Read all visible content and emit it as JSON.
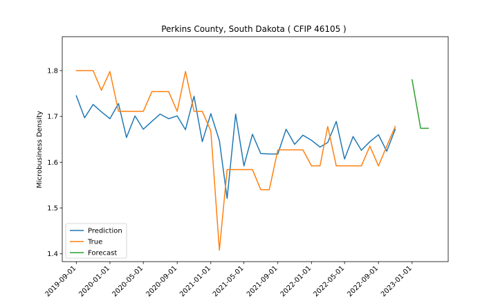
{
  "chart_data": {
    "type": "line",
    "title": "Perkins County, South Dakota ( CFIP 46105 )",
    "xlabel": "",
    "ylabel": "Microbusiness Density",
    "xlim": [
      "2019-07-12",
      "2023-05-12"
    ],
    "ylim": [
      1.383,
      1.874
    ],
    "x_ticks": [
      "2019-09-01",
      "2020-01-01",
      "2020-05-01",
      "2020-09-01",
      "2021-01-01",
      "2021-05-01",
      "2021-09-01",
      "2022-01-01",
      "2022-05-01",
      "2022-09-01",
      "2023-01-01"
    ],
    "y_ticks": [
      1.4,
      1.5,
      1.6,
      1.7,
      1.8
    ],
    "grid": false,
    "legend_position": "lower-left",
    "series": [
      {
        "name": "Prediction",
        "color": "#1f77b4",
        "x": [
          "2019-09-01",
          "2019-10-01",
          "2019-11-01",
          "2019-12-01",
          "2020-01-01",
          "2020-02-01",
          "2020-03-01",
          "2020-04-01",
          "2020-05-01",
          "2020-06-01",
          "2020-07-01",
          "2020-08-01",
          "2020-09-01",
          "2020-10-01",
          "2020-11-01",
          "2020-12-01",
          "2021-01-01",
          "2021-02-01",
          "2021-03-01",
          "2021-04-01",
          "2021-05-01",
          "2021-06-01",
          "2021-07-01",
          "2021-08-01",
          "2021-09-01",
          "2021-10-01",
          "2021-11-01",
          "2021-12-01",
          "2022-01-01",
          "2022-02-01",
          "2022-03-01",
          "2022-04-01",
          "2022-05-01",
          "2022-06-01",
          "2022-07-01",
          "2022-08-01",
          "2022-09-01",
          "2022-10-01",
          "2022-11-01"
        ],
        "y": [
          1.745,
          1.697,
          1.726,
          1.71,
          1.695,
          1.728,
          1.654,
          1.701,
          1.672,
          1.689,
          1.705,
          1.695,
          1.701,
          1.671,
          1.744,
          1.645,
          1.706,
          1.647,
          1.521,
          1.705,
          1.592,
          1.661,
          1.619,
          1.618,
          1.618,
          1.672,
          1.639,
          1.659,
          1.648,
          1.633,
          1.643,
          1.689,
          1.607,
          1.656,
          1.626,
          1.645,
          1.66,
          1.624,
          1.672
        ]
      },
      {
        "name": "True",
        "color": "#ff7f0e",
        "x": [
          "2019-09-01",
          "2019-10-01",
          "2019-11-01",
          "2019-12-01",
          "2020-01-01",
          "2020-02-01",
          "2020-03-01",
          "2020-04-01",
          "2020-05-01",
          "2020-06-01",
          "2020-07-01",
          "2020-08-01",
          "2020-09-01",
          "2020-10-01",
          "2020-11-01",
          "2020-12-01",
          "2021-01-01",
          "2021-02-01",
          "2021-03-01",
          "2021-04-01",
          "2021-05-01",
          "2021-06-01",
          "2021-07-01",
          "2021-08-01",
          "2021-09-01",
          "2021-10-01",
          "2021-11-01",
          "2021-12-01",
          "2022-01-01",
          "2022-02-01",
          "2022-03-01",
          "2022-04-01",
          "2022-05-01",
          "2022-06-01",
          "2022-07-01",
          "2022-08-01",
          "2022-09-01",
          "2022-10-01",
          "2022-11-01"
        ],
        "y": [
          1.8,
          1.8,
          1.8,
          1.757,
          1.798,
          1.711,
          1.711,
          1.711,
          1.711,
          1.754,
          1.754,
          1.754,
          1.711,
          1.798,
          1.711,
          1.711,
          1.668,
          1.408,
          1.584,
          1.584,
          1.584,
          1.584,
          1.54,
          1.54,
          1.627,
          1.627,
          1.627,
          1.627,
          1.592,
          1.592,
          1.678,
          1.592,
          1.592,
          1.592,
          1.592,
          1.635,
          1.592,
          1.635,
          1.678
        ]
      },
      {
        "name": "Forecast",
        "color": "#2ca02c",
        "x": [
          "2023-01-01",
          "2023-02-01",
          "2023-03-01"
        ],
        "y": [
          1.78,
          1.674,
          1.674
        ]
      }
    ]
  }
}
